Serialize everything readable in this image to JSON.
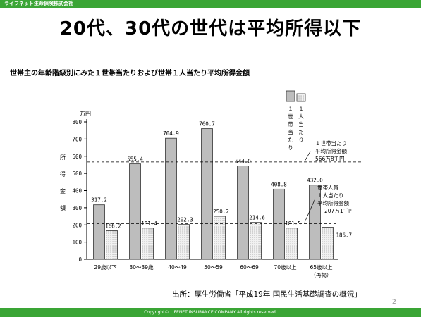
{
  "header": {
    "company": "ライフネット生命保険株式会社"
  },
  "slide": {
    "title": "20代、30代の世代は平均所得以下",
    "source": "出所：厚生労働省「平成19年 国民生活基礎調査の概況」",
    "page_number": "2"
  },
  "footer": {
    "copyright": "Copyright© LIFENET INSURANCE COMPANY All rights reserved."
  },
  "colors": {
    "brand_green": "#3aa535",
    "household_bar": "#bdbdbd",
    "per_person_bar": "#f1f1f1"
  },
  "chart_data": {
    "type": "bar",
    "title": "世帯主の年齢階級別にみた１世帯当たりおよび世帯１人当たり平均所得金額",
    "ylabel": "所得金額",
    "yunit": "万円",
    "ylim": [
      0,
      800
    ],
    "yticks": [
      "0",
      "100",
      "200",
      "300",
      "400",
      "500",
      "600",
      "700",
      "800"
    ],
    "grid": false,
    "categories": [
      {
        "label": "29歳以下",
        "sub": ""
      },
      {
        "label": "30～39歳",
        "sub": ""
      },
      {
        "label": "40～49",
        "sub": ""
      },
      {
        "label": "50～59",
        "sub": ""
      },
      {
        "label": "60～69",
        "sub": ""
      },
      {
        "label": "70歳以上",
        "sub": ""
      },
      {
        "label": "65歳以上",
        "sub": "（再掲）"
      }
    ],
    "series": [
      {
        "name": "１世帯当たり",
        "values": [
          317.2,
          555.4,
          704.9,
          760.7,
          544.0,
          408.8,
          432.0
        ],
        "labels": [
          "317.2",
          "555.4",
          "704.9",
          "760.7",
          "544.0",
          "408.8",
          "432.0"
        ]
      },
      {
        "name": "１人当たり",
        "values": [
          166.2,
          181.4,
          202.3,
          250.2,
          214.6,
          181.5,
          186.7
        ],
        "labels": [
          "166.2",
          "181.4",
          "202.3",
          "250.2",
          "214.6",
          "181.5",
          "186.7"
        ]
      }
    ],
    "legend_placement": "top-right",
    "reference_lines": [
      {
        "value": 566.8,
        "label_lines": [
          "１世帯当たり",
          "平均所得金額",
          "566万8千円"
        ]
      },
      {
        "value": 207.1,
        "label_lines": [
          "世帯人員",
          "１人当たり",
          "平均所得金額",
          "207万1千円"
        ]
      }
    ]
  }
}
